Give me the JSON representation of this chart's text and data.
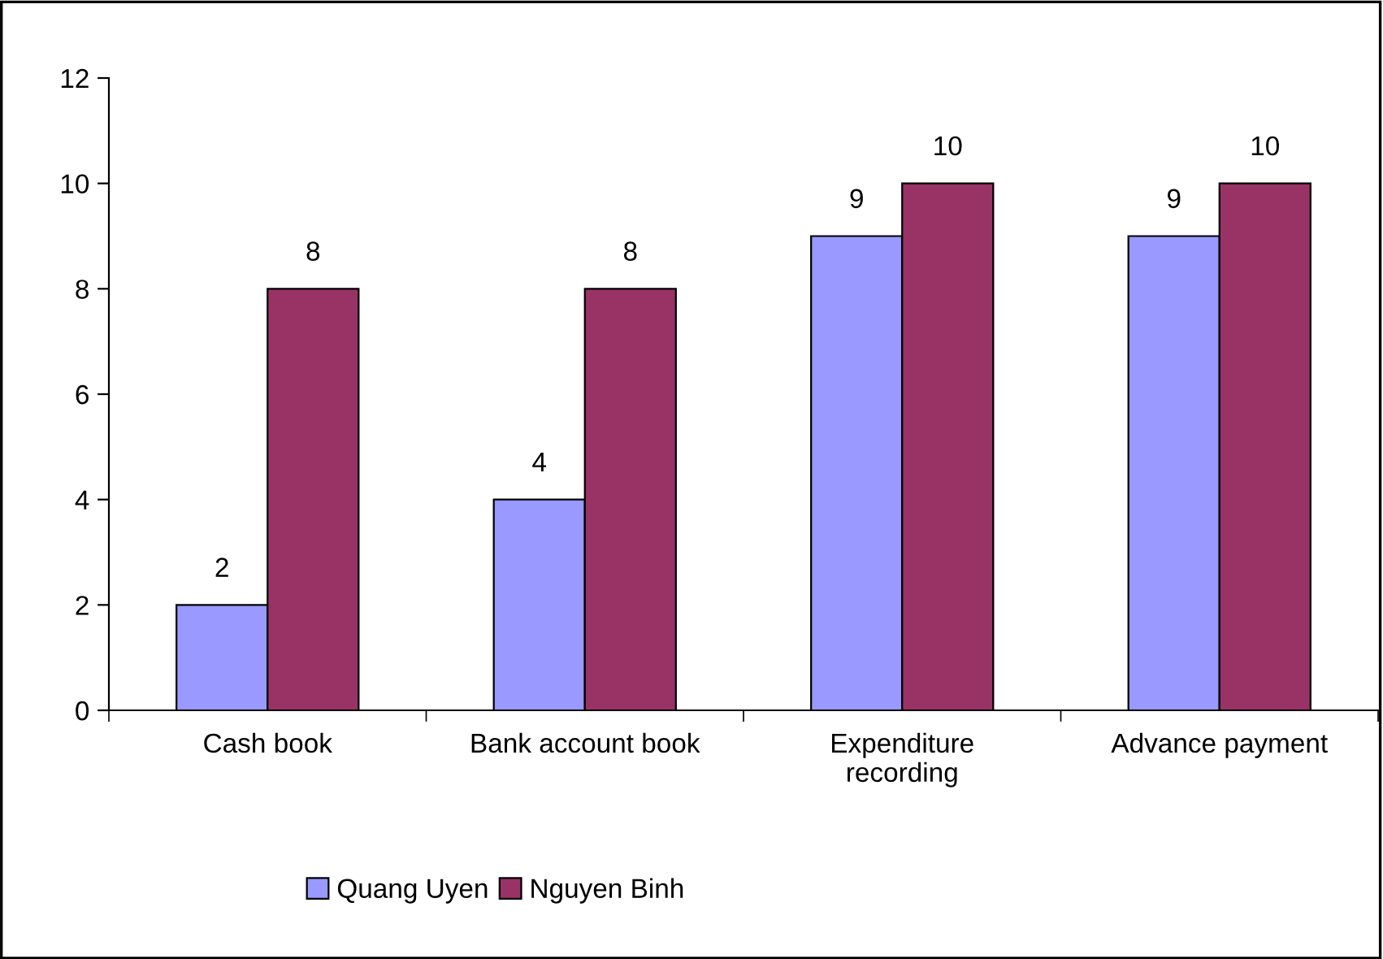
{
  "chart_data": {
    "type": "bar",
    "categories": [
      "Cash book",
      "Bank account book",
      "Expenditure recording",
      "Advance payment"
    ],
    "series": [
      {
        "name": "Quang Uyen",
        "color": "#9999ff",
        "values": [
          2,
          4,
          9,
          9
        ]
      },
      {
        "name": "Nguyen Binh",
        "color": "#993366",
        "values": [
          8,
          8,
          10,
          10
        ]
      }
    ],
    "ylim": [
      0,
      12
    ],
    "yticks": [
      0,
      2,
      4,
      6,
      8,
      10,
      12
    ],
    "data_labels": true,
    "legend": "bottom",
    "grid": false
  }
}
